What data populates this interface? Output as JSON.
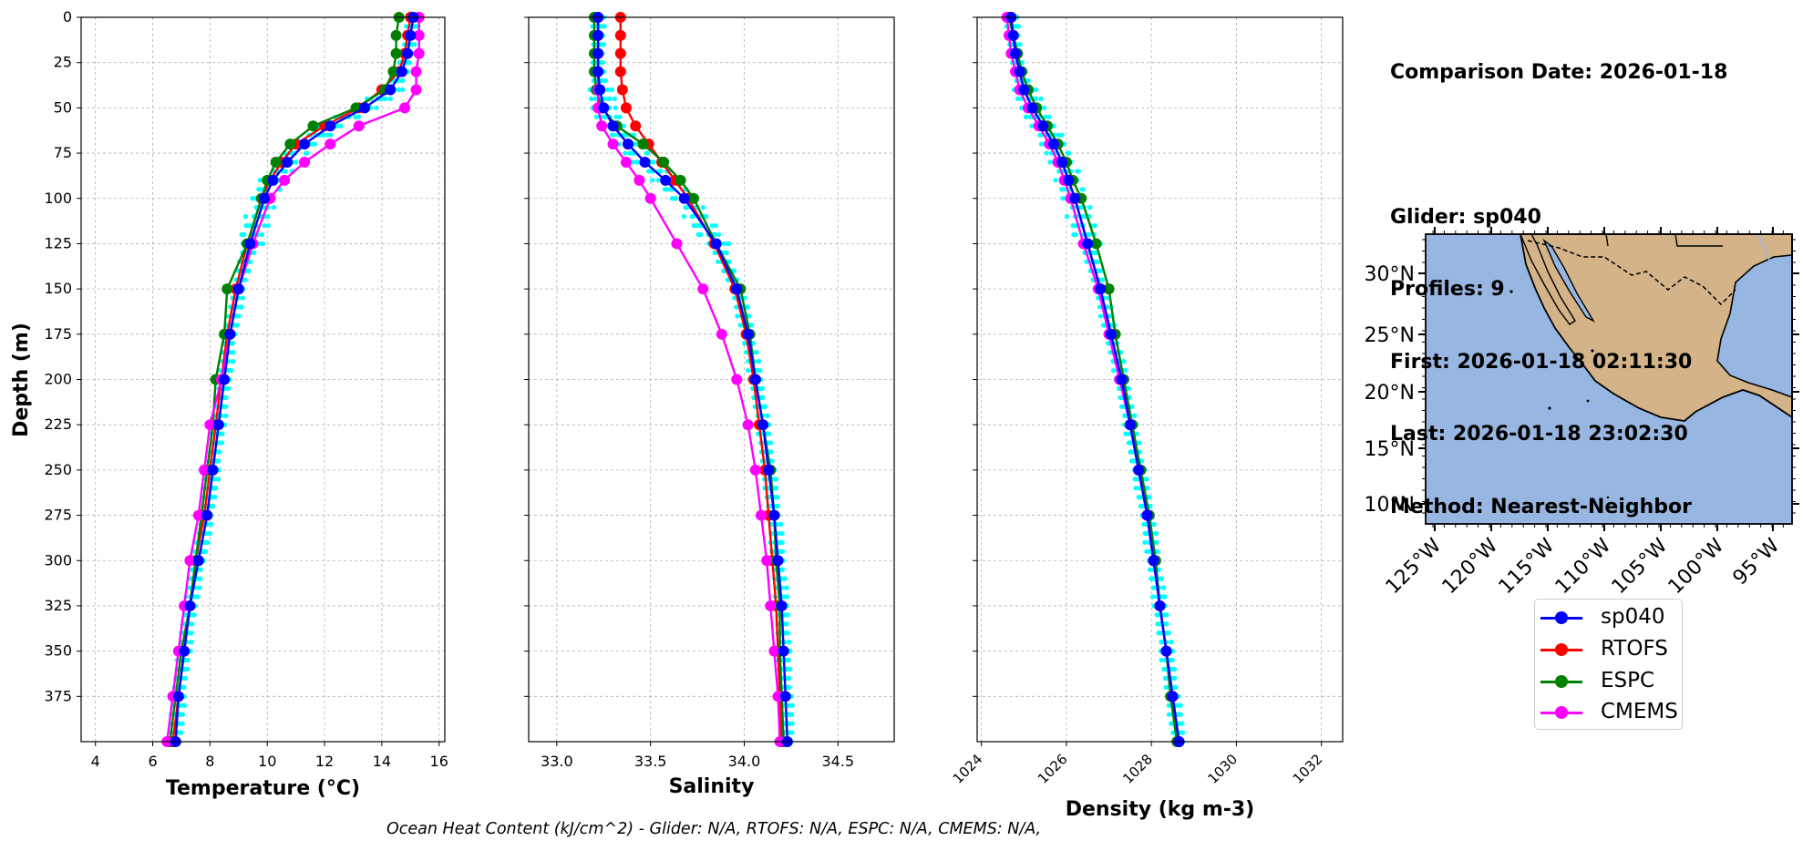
{
  "info": {
    "comparison_date": "Comparison Date: 2026-01-18",
    "glider": "Glider: sp040",
    "profiles": "Profiles: 9",
    "first": "First: 2026-01-18 02:11:30",
    "last": "Last: 2026-01-18 23:02:30",
    "method": "Method: Nearest-Neighbor"
  },
  "footnote": "Ocean Heat Content (kJ/cm^2) - Glider: N/A,  RTOFS: N/A,  ESPC: N/A,  CMEMS: N/A,",
  "colors": {
    "sp040": "#0000ff",
    "RTOFS": "#ff0000",
    "ESPC": "#008000",
    "CMEMS": "#ff00ff",
    "glider_raw": "#00ffff",
    "grid": "#b0b0b0",
    "ocean": "#97b6e1",
    "land": "#d3b387"
  },
  "legend": [
    {
      "label": "sp040",
      "color": "#0000ff"
    },
    {
      "label": "RTOFS",
      "color": "#ff0000"
    },
    {
      "label": "ESPC",
      "color": "#008000"
    },
    {
      "label": "CMEMS",
      "color": "#ff00ff"
    }
  ],
  "chart_data": [
    {
      "type": "line",
      "xlabel": "Temperature (°C)",
      "ylabel": "Depth (m)",
      "xlim": [
        3.5,
        16.2
      ],
      "ylim": [
        400,
        0
      ],
      "xticks": [
        "4",
        "6",
        "8",
        "10",
        "12",
        "14",
        "16"
      ],
      "yticks": [
        "0",
        "25",
        "50",
        "75",
        "100",
        "125",
        "150",
        "175",
        "200",
        "225",
        "250",
        "275",
        "300",
        "325",
        "350",
        "375"
      ],
      "grid": true,
      "depth": [
        0,
        10,
        20,
        30,
        40,
        50,
        60,
        70,
        80,
        90,
        100,
        125,
        150,
        175,
        200,
        225,
        250,
        275,
        300,
        325,
        350,
        375,
        400
      ],
      "series": [
        {
          "name": "sp040",
          "values": [
            15.1,
            15.0,
            14.9,
            14.7,
            14.3,
            13.4,
            12.2,
            11.3,
            10.7,
            10.2,
            9.9,
            9.4,
            9.0,
            8.7,
            8.5,
            8.3,
            8.1,
            7.9,
            7.6,
            7.3,
            7.1,
            6.9,
            6.8
          ]
        },
        {
          "name": "RTOFS",
          "values": [
            15.0,
            14.9,
            14.8,
            14.6,
            14.0,
            13.2,
            12.0,
            11.0,
            10.5,
            10.1,
            9.8,
            9.3,
            8.9,
            8.6,
            8.4,
            8.2,
            8.0,
            7.8,
            7.5,
            7.3,
            7.1,
            6.9,
            6.7
          ]
        },
        {
          "name": "ESPC",
          "values": [
            14.6,
            14.5,
            14.5,
            14.4,
            14.1,
            13.1,
            11.6,
            10.8,
            10.3,
            10.0,
            9.8,
            9.3,
            8.6,
            8.5,
            8.2,
            8.1,
            7.9,
            7.7,
            7.5,
            7.3,
            7.0,
            6.8,
            6.6
          ]
        },
        {
          "name": "CMEMS",
          "values": [
            15.3,
            15.3,
            15.3,
            15.2,
            15.2,
            14.8,
            13.2,
            12.2,
            11.3,
            10.6,
            10.1,
            9.5,
            9.0,
            8.7,
            8.4,
            8.0,
            7.8,
            7.6,
            7.3,
            7.1,
            6.9,
            6.7,
            6.5
          ]
        }
      ]
    },
    {
      "type": "line",
      "xlabel": "Salinity",
      "ylabel": "",
      "xlim": [
        32.85,
        34.8
      ],
      "ylim": [
        400,
        0
      ],
      "xticks": [
        "33.0",
        "33.5",
        "34.0",
        "34.5"
      ],
      "grid": true,
      "depth": [
        0,
        10,
        20,
        30,
        40,
        50,
        60,
        70,
        80,
        90,
        100,
        125,
        150,
        175,
        200,
        225,
        250,
        275,
        300,
        325,
        350,
        375,
        400
      ],
      "series": [
        {
          "name": "sp040",
          "values": [
            33.22,
            33.22,
            33.22,
            33.22,
            33.23,
            33.25,
            33.3,
            33.38,
            33.47,
            33.58,
            33.68,
            33.85,
            33.96,
            34.02,
            34.06,
            34.1,
            34.13,
            34.16,
            34.18,
            34.2,
            34.21,
            34.22,
            34.23
          ]
        },
        {
          "name": "RTOFS",
          "values": [
            33.34,
            33.34,
            33.34,
            33.34,
            33.35,
            33.37,
            33.42,
            33.49,
            33.56,
            33.63,
            33.7,
            33.84,
            33.95,
            34.01,
            34.05,
            34.08,
            34.11,
            34.13,
            34.15,
            34.17,
            34.18,
            34.19,
            34.2
          ]
        },
        {
          "name": "ESPC",
          "values": [
            33.2,
            33.2,
            33.2,
            33.2,
            33.21,
            33.24,
            33.32,
            33.46,
            33.57,
            33.66,
            33.73,
            33.85,
            33.98,
            34.03,
            34.06,
            34.1,
            34.14,
            34.16,
            34.17,
            34.19,
            34.19,
            34.2,
            34.21
          ]
        },
        {
          "name": "CMEMS",
          "values": [
            33.22,
            33.22,
            33.22,
            33.22,
            33.22,
            33.22,
            33.24,
            33.3,
            33.37,
            33.44,
            33.5,
            33.64,
            33.78,
            33.88,
            33.96,
            34.02,
            34.06,
            34.09,
            34.12,
            34.14,
            34.16,
            34.18,
            34.19
          ]
        }
      ]
    },
    {
      "type": "line",
      "xlabel": "Density (kg m-3)",
      "ylabel": "",
      "xlim": [
        1023.9,
        1032.5
      ],
      "ylim": [
        400,
        0
      ],
      "xticks": [
        "1024",
        "1026",
        "1028",
        "1030",
        "1032"
      ],
      "grid": true,
      "depth": [
        0,
        10,
        20,
        30,
        40,
        50,
        60,
        70,
        80,
        90,
        100,
        125,
        150,
        175,
        200,
        225,
        250,
        275,
        300,
        325,
        350,
        375,
        400
      ],
      "series": [
        {
          "name": "sp040",
          "values": [
            1024.7,
            1024.75,
            1024.8,
            1024.9,
            1025.0,
            1025.2,
            1025.45,
            1025.7,
            1025.9,
            1026.05,
            1026.2,
            1026.5,
            1026.8,
            1027.05,
            1027.3,
            1027.5,
            1027.7,
            1027.9,
            1028.05,
            1028.2,
            1028.35,
            1028.5,
            1028.65
          ]
        },
        {
          "name": "RTOFS",
          "values": [
            1024.7,
            1024.75,
            1024.8,
            1024.9,
            1025.0,
            1025.2,
            1025.45,
            1025.7,
            1025.9,
            1026.05,
            1026.2,
            1026.5,
            1026.8,
            1027.05,
            1027.3,
            1027.5,
            1027.7,
            1027.9,
            1028.05,
            1028.2,
            1028.35,
            1028.5,
            1028.65
          ]
        },
        {
          "name": "ESPC",
          "values": [
            1024.65,
            1024.75,
            1024.85,
            1024.95,
            1025.1,
            1025.3,
            1025.55,
            1025.8,
            1026.0,
            1026.15,
            1026.35,
            1026.7,
            1027.0,
            1027.15,
            1027.35,
            1027.55,
            1027.75,
            1027.95,
            1028.1,
            1028.2,
            1028.35,
            1028.45,
            1028.6
          ]
        },
        {
          "name": "CMEMS",
          "values": [
            1024.6,
            1024.65,
            1024.7,
            1024.8,
            1024.9,
            1025.1,
            1025.35,
            1025.6,
            1025.8,
            1025.95,
            1026.1,
            1026.4,
            1026.75,
            1027.0,
            1027.25,
            1027.5,
            1027.7,
            1027.9,
            1028.05,
            1028.2,
            1028.35,
            1028.5,
            1028.65
          ]
        }
      ]
    },
    {
      "type": "map",
      "lat_ticks": [
        "30°N",
        "25°N",
        "20°N",
        "15°N",
        "10°N"
      ],
      "lon_ticks": [
        "125°W",
        "120°W",
        "115°W",
        "110°W",
        "105°W",
        "100°W",
        "95°W"
      ]
    }
  ]
}
